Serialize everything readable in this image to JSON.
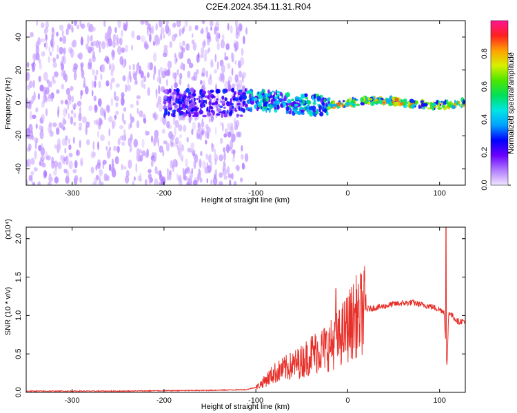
{
  "title": "C2E4.2024.354.11.31.R04",
  "chart_data": [
    {
      "type": "heatmap",
      "title": "",
      "xlabel": "Height of straight line (km)",
      "ylabel": "Frequency (Hz)",
      "xlim": [
        -350,
        128
      ],
      "ylim": [
        -50,
        50
      ],
      "xticks": [
        -300,
        -200,
        -100,
        0,
        100
      ],
      "yticks": [
        -40,
        -20,
        0,
        20,
        40
      ],
      "colorbar": {
        "label": "Normalized spectral amplitude",
        "range": [
          0.0,
          1.0
        ],
        "ticks": [
          0.0,
          0.2,
          0.4,
          0.6,
          0.8
        ],
        "colormap": [
          "#f2e6ff",
          "#b07cff",
          "#6a00ff",
          "#0000ff",
          "#00a0ff",
          "#00e5e5",
          "#00e05a",
          "#4ce600",
          "#d8f000",
          "#ffa000",
          "#ff2020",
          "#ff1493"
        ]
      },
      "description_regions": [
        {
          "x_range": [
            -350,
            -110
          ],
          "freq_spread": 50,
          "amplitude": 0.08
        },
        {
          "x_range": [
            -200,
            -110
          ],
          "freq_spread": 8,
          "amplitude": 0.25
        },
        {
          "x_range": [
            -110,
            -20
          ],
          "freq_spread": 6,
          "amplitude": 0.45
        },
        {
          "x_range": [
            -20,
            128
          ],
          "freq_spread": 2,
          "amplitude": 0.7
        }
      ]
    },
    {
      "type": "line",
      "title": "",
      "xlabel": "Height of straight line (km)",
      "ylabel": "SNR (10 * v/v)",
      "scale_label": "(x10⁴)",
      "xlim": [
        -350,
        128
      ],
      "ylim": [
        0.0,
        2.15
      ],
      "xticks": [
        -300,
        -200,
        -100,
        0,
        100
      ],
      "yticks": [
        0.0,
        0.5,
        1.0,
        1.5,
        2.0
      ],
      "series": [
        {
          "color": "#e8302a",
          "x": [
            -350,
            -300,
            -250,
            -200,
            -150,
            -110,
            -100,
            -90,
            -80,
            -70,
            -60,
            -50,
            -40,
            -30,
            -20,
            -10,
            0,
            10,
            20,
            30,
            40,
            50,
            60,
            70,
            80,
            90,
            100,
            105,
            108,
            110,
            115,
            120,
            128
          ],
          "y": [
            0.01,
            0.01,
            0.01,
            0.015,
            0.02,
            0.03,
            0.06,
            0.15,
            0.25,
            0.3,
            0.35,
            0.4,
            0.5,
            0.55,
            0.6,
            0.7,
            0.85,
            1.0,
            1.08,
            1.1,
            1.12,
            1.15,
            1.16,
            1.17,
            1.14,
            1.12,
            1.08,
            1.05,
            0.3,
            1.05,
            0.98,
            0.92,
            0.93
          ]
        }
      ],
      "spikes": [
        {
          "x": 107,
          "y": 2.15
        },
        {
          "x": -13,
          "y": 1.35
        },
        {
          "x": 12,
          "y": 1.2
        }
      ]
    }
  ]
}
